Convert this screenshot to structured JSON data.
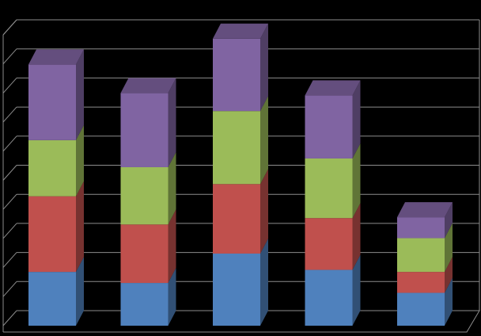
{
  "chart_data": {
    "type": "bar",
    "stacked": true,
    "three_d": true,
    "title": "",
    "xlabel": "",
    "ylabel": "",
    "categories": [
      "",
      "",
      "",
      "",
      ""
    ],
    "ylim": [
      0,
      10
    ],
    "grid": true,
    "legend": "none",
    "background": "#000000",
    "gridline_color": "#8c8c8c",
    "series": [
      {
        "color": "#4f81bd",
        "values": [
          1.85,
          1.47,
          2.48,
          1.92,
          1.13
        ]
      },
      {
        "color": "#c0504d",
        "values": [
          2.6,
          2.01,
          2.39,
          1.78,
          0.72
        ]
      },
      {
        "color": "#9bbb59",
        "values": [
          1.93,
          1.97,
          2.51,
          2.05,
          1.16
        ]
      },
      {
        "color": "#8064a2",
        "values": [
          2.6,
          2.55,
          2.49,
          2.17,
          0.72
        ]
      }
    ]
  }
}
